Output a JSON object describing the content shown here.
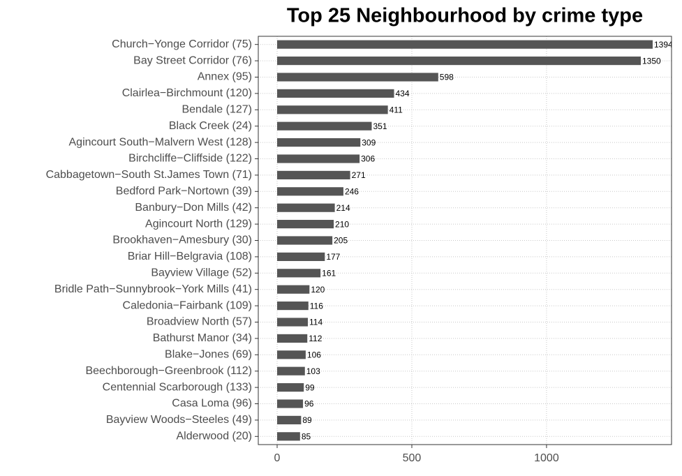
{
  "chart_data": {
    "type": "barh",
    "title": "Top 25 Neighbourhood by crime type",
    "categories": [
      "Church−Yonge Corridor (75)",
      "Bay Street Corridor (76)",
      "Annex (95)",
      "Clairlea−Birchmount (120)",
      "Bendale (127)",
      "Black Creek (24)",
      "Agincourt South−Malvern West (128)",
      "Birchcliffe−Cliffside (122)",
      "Cabbagetown−South St.James Town (71)",
      "Bedford Park−Nortown (39)",
      "Banbury−Don Mills (42)",
      "Agincourt North (129)",
      "Brookhaven−Amesbury (30)",
      "Briar Hill−Belgravia (108)",
      "Bayview Village (52)",
      "Bridle Path−Sunnybrook−York Mills (41)",
      "Caledonia−Fairbank (109)",
      "Broadview North (57)",
      "Bathurst Manor (34)",
      "Blake−Jones (69)",
      "Beechborough−Greenbrook (112)",
      "Centennial Scarborough (133)",
      "Casa Loma (96)",
      "Bayview Woods−Steeles (49)",
      "Alderwood (20)"
    ],
    "values": [
      1394,
      1350,
      598,
      434,
      411,
      351,
      309,
      306,
      271,
      246,
      214,
      210,
      205,
      177,
      161,
      120,
      116,
      114,
      112,
      106,
      103,
      99,
      96,
      89,
      85
    ],
    "color": "#555555",
    "xlim": [
      -70,
      1464
    ],
    "xticks": [
      0,
      500,
      1000
    ],
    "grid": true
  }
}
